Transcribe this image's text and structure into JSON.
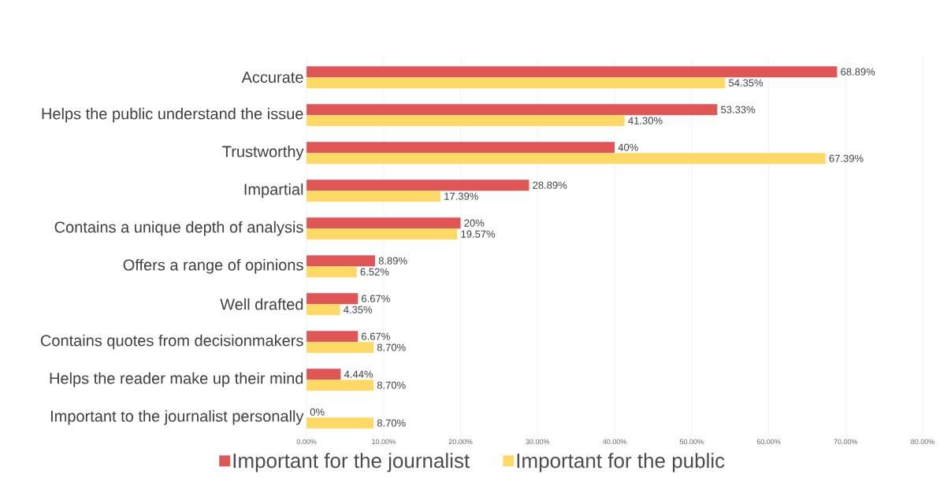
{
  "chart_data": {
    "type": "bar",
    "orientation": "horizontal",
    "categories": [
      "Accurate",
      "Helps the public understand the issue",
      "Trustworthy",
      "Impartial",
      "Contains a unique depth of analysis",
      "Offers a range of opinions",
      "Well drafted",
      "Contains quotes from decisionmakers",
      "Helps the reader make up their mind",
      "Important to the journalist personally"
    ],
    "series": [
      {
        "name": "Important for the journalist",
        "color": "#e05656",
        "values": [
          68.89,
          53.33,
          40,
          28.89,
          20,
          8.89,
          6.67,
          6.67,
          4.44,
          0
        ],
        "value_labels": [
          "68.89%",
          "53.33%",
          "40%",
          "28.89%",
          "20%",
          "8.89%",
          "6.67%",
          "6.67%",
          "4.44%",
          "0%"
        ]
      },
      {
        "name": "Important for the public",
        "color": "#ffd966",
        "values": [
          54.35,
          41.3,
          67.39,
          17.39,
          19.57,
          6.52,
          4.35,
          8.7,
          8.7,
          8.7
        ],
        "value_labels": [
          "54.35%",
          "41.30%",
          "67.39%",
          "17.39%",
          "19.57%",
          "6.52%",
          "4.35%",
          "8.70%",
          "8.70%",
          "8.70%"
        ]
      }
    ],
    "xlim": [
      0,
      80
    ],
    "xticks": [
      {
        "value": 0,
        "label": "0.00%"
      },
      {
        "value": 10,
        "label": "10.00%"
      },
      {
        "value": 20,
        "label": "20.00%"
      },
      {
        "value": 30,
        "label": "30.00%"
      },
      {
        "value": 40,
        "label": "40.00%"
      },
      {
        "value": 50,
        "label": "50.00%"
      },
      {
        "value": 60,
        "label": "60.00%"
      },
      {
        "value": 70,
        "label": "70.00%"
      },
      {
        "value": 80,
        "label": "80.00%"
      }
    ],
    "grid": "x",
    "legend": "bottom"
  }
}
